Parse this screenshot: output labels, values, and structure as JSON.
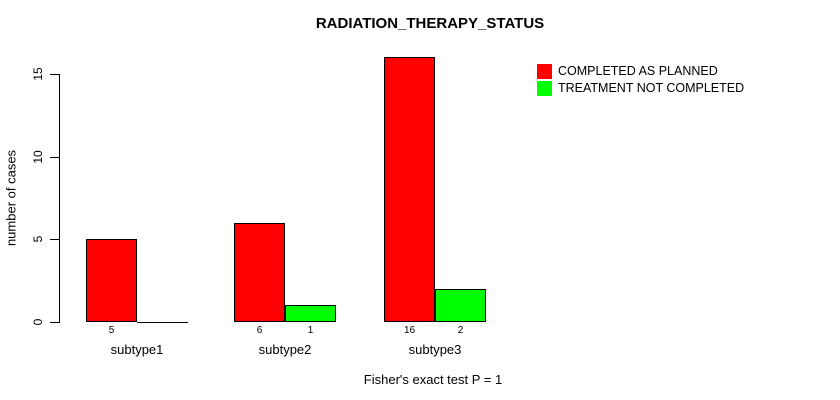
{
  "chart_data": {
    "type": "bar",
    "title": "RADIATION_THERAPY_STATUS",
    "xlabel": "",
    "ylabel": "number of cases",
    "categories": [
      "subtype1",
      "subtype2",
      "subtype3"
    ],
    "series": [
      {
        "name": "COMPLETED AS PLANNED",
        "color": "#FF0000",
        "values": [
          5,
          6,
          16
        ]
      },
      {
        "name": "TREATMENT NOT COMPLETED",
        "color": "#00FF00",
        "values": [
          0,
          1,
          2
        ]
      }
    ],
    "bar_value_labels": [
      [
        "5",
        "6",
        "16"
      ],
      [
        "",
        "1",
        "2"
      ]
    ],
    "y_ticks": [
      "0",
      "5",
      "10",
      "15"
    ],
    "ylim": [
      0,
      15
    ],
    "grid": false,
    "legend_position": "top-right",
    "bar_border_color": "#000000",
    "footnote": "Fisher's exact test P = 1"
  }
}
